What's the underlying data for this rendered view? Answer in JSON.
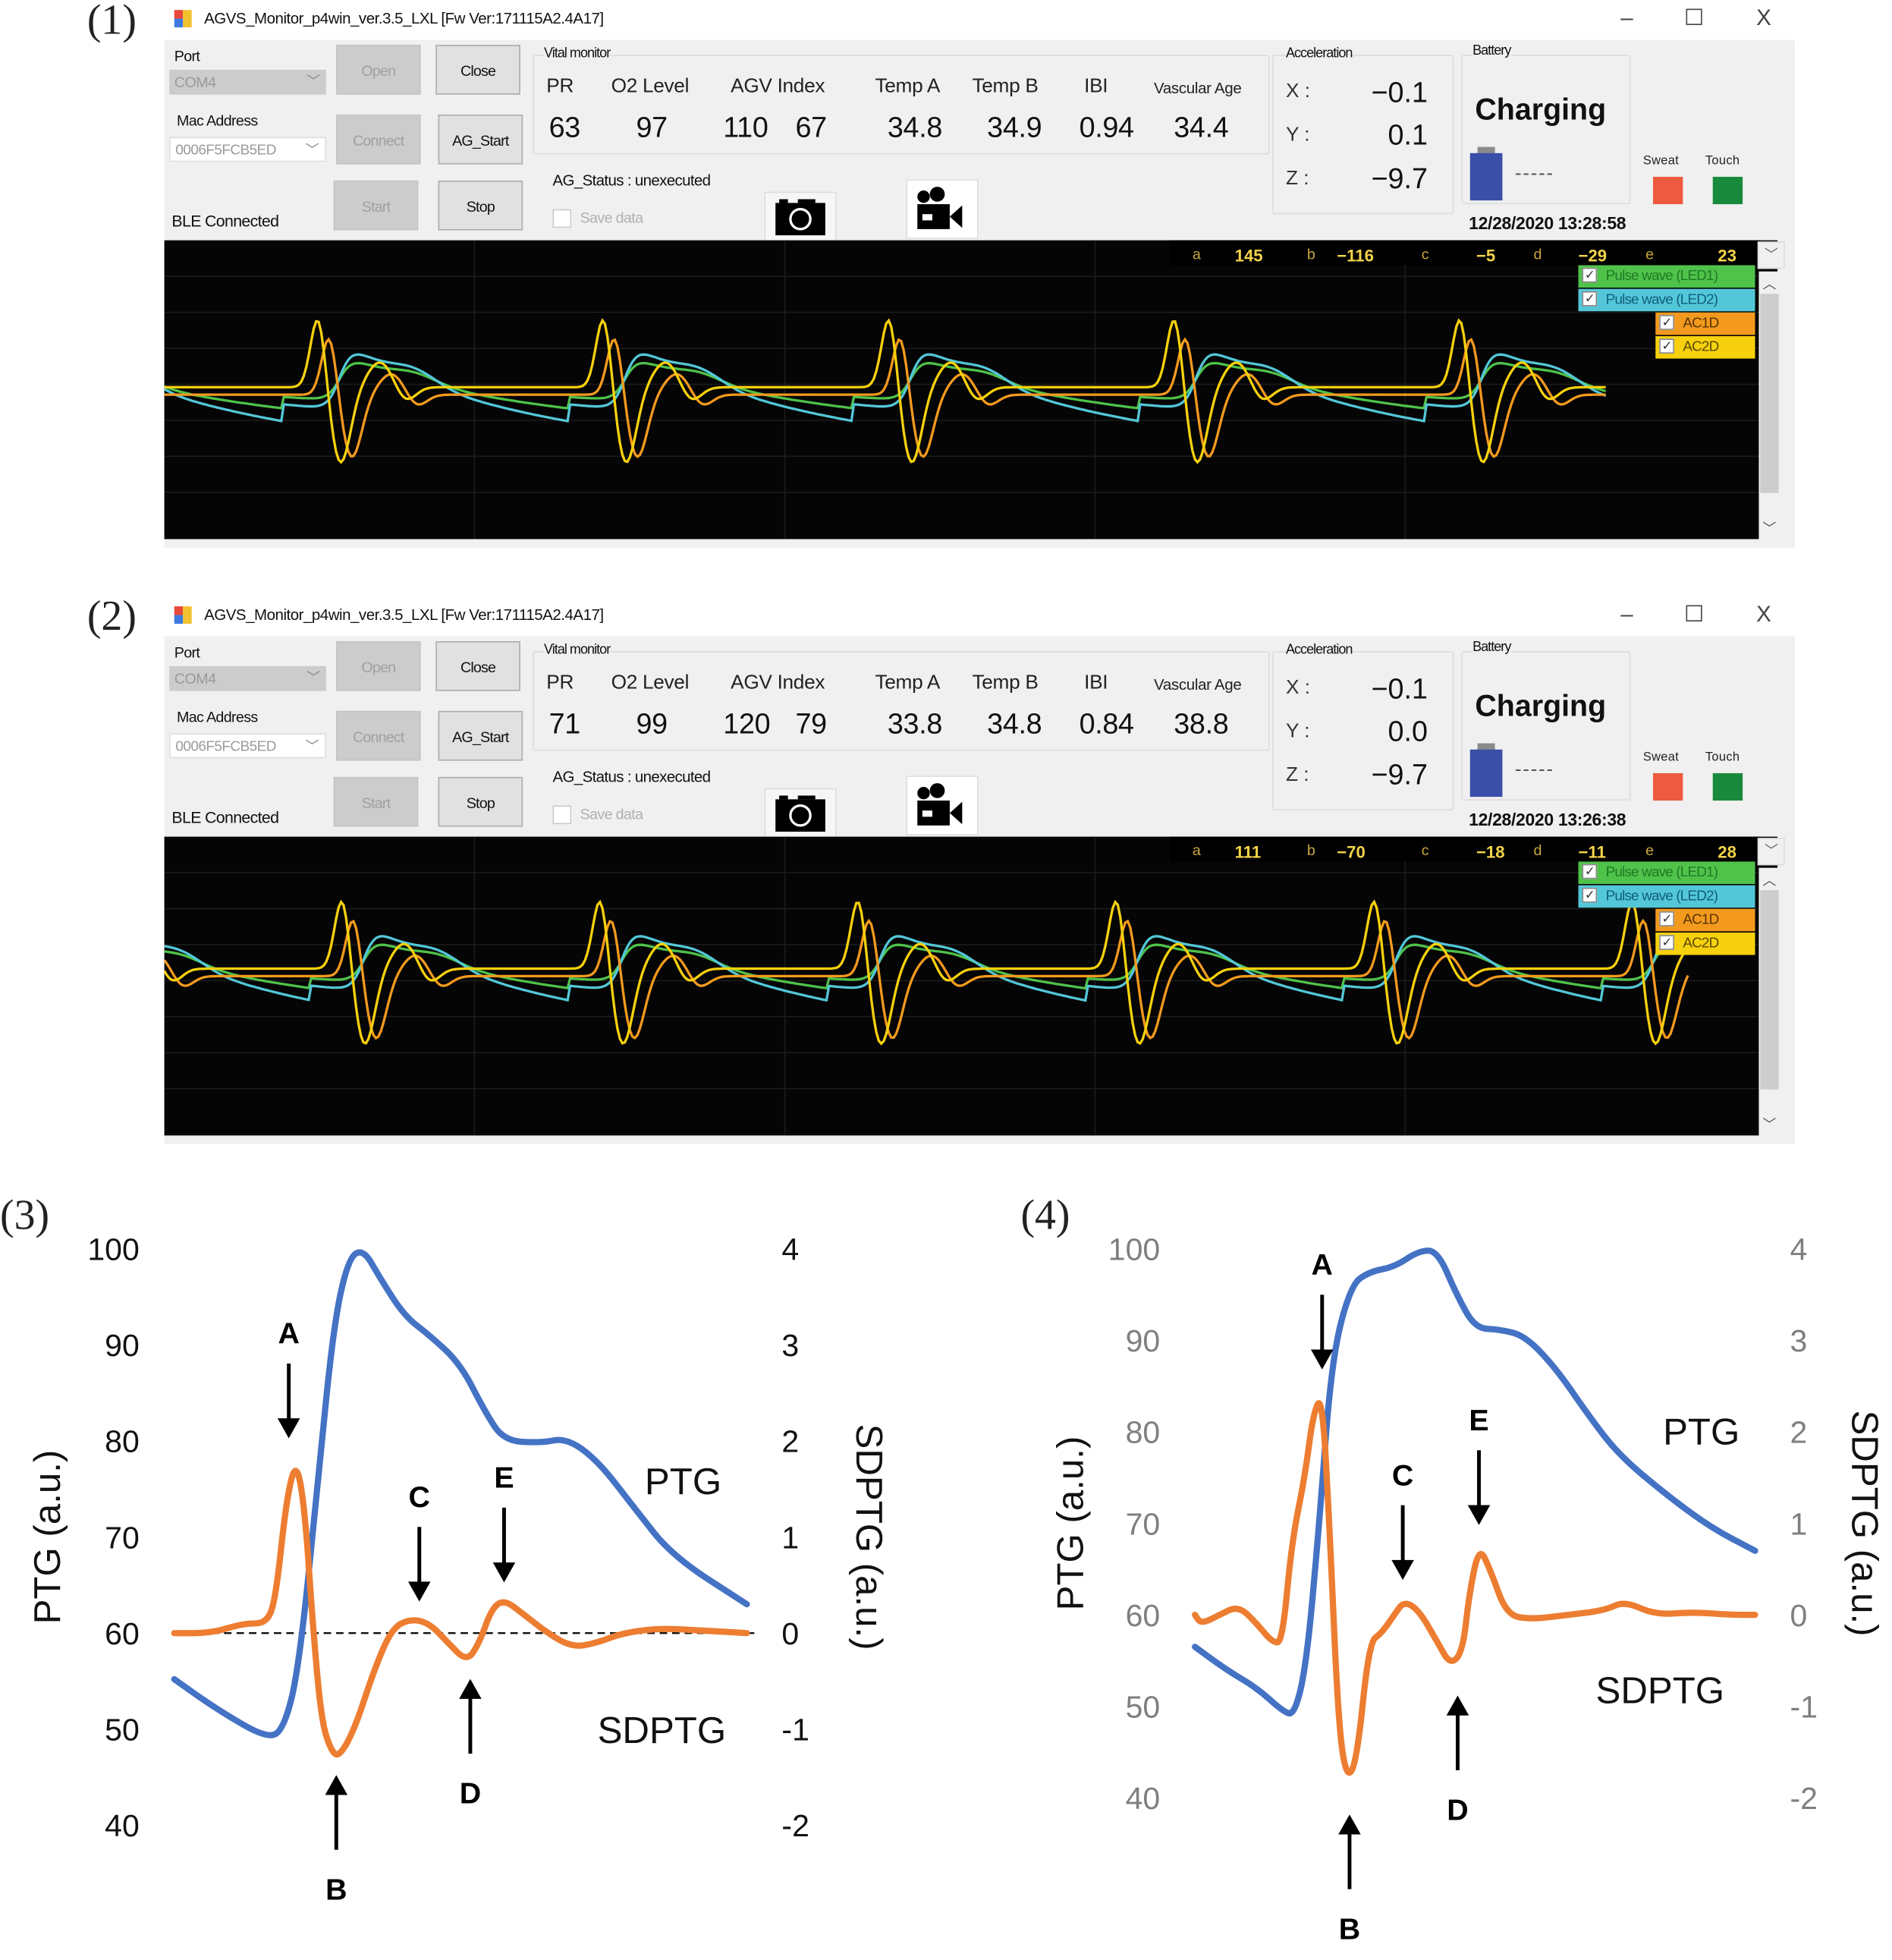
{
  "panels": [
    {
      "label": "(1)",
      "window": {
        "title": "AGVS_Monitor_p4win_ver.3.5_LXL   [Fw Ver:171115A2.4A17]",
        "controls": {
          "minimize": "–",
          "maximize": "☐",
          "close": "X"
        }
      },
      "connection": {
        "port_label": "Port",
        "port_value": "COM4",
        "mac_label": "Mac Address",
        "mac_value": "0006F5FCB5ED",
        "ble_status": "BLE Connected",
        "buttons": {
          "open": "Open",
          "close": "Close",
          "connect": "Connect",
          "ag_start": "AG_Start",
          "start": "Start",
          "stop": "Stop"
        }
      },
      "vital_monitor": {
        "title": "Vital monitor",
        "headers": [
          "PR",
          "O2 Level",
          "AGV Index",
          "Temp A",
          "Temp B",
          "IBI",
          "Vascular Age"
        ],
        "values": {
          "pr": "63",
          "o2": "97",
          "agv1": "110",
          "agv2": "67",
          "temp_a": "34.8",
          "temp_b": "34.9",
          "ibi": "0.94",
          "vascular_age": "34.4"
        }
      },
      "ag_status": "AG_Status : unexecuted",
      "save_data_label": "Save data",
      "save_data_checked": false,
      "acceleration": {
        "title": "Acceleration",
        "x_label": "X :",
        "y_label": "Y :",
        "z_label": "Z :",
        "x": "−0.1",
        "y": "0.1",
        "z": "−9.7"
      },
      "battery": {
        "title": "Battery",
        "status": "Charging",
        "level_text": "-----"
      },
      "sensors": {
        "sweat_label": "Sweat",
        "touch_label": "Touch",
        "sweat_color": "#ee5a3f",
        "touch_color": "#198a3c"
      },
      "datetime": "12/28/2020   13:28:58",
      "params": {
        "a_label": "a",
        "a": "145",
        "b_label": "b",
        "b": "−116",
        "c_label": "c",
        "c": "−5",
        "d_label": "d",
        "d": "−29",
        "e_label": "e",
        "e": "23"
      },
      "legend": [
        {
          "label": "Pulse wave (LED1)",
          "checked": true,
          "bg": "#4fc24a",
          "fg": "#1f7a25"
        },
        {
          "label": "Pulse wave (LED2)",
          "checked": true,
          "bg": "#53c7d8",
          "fg": "#0f5d7a"
        },
        {
          "label": "AC1D",
          "checked": true,
          "bg": "#f39a1e",
          "fg": "#5a3300"
        },
        {
          "label": "AC2D",
          "checked": true,
          "bg": "#f7d10d",
          "fg": "#5a4a00"
        }
      ],
      "waveform": {
        "beats": 5,
        "beat_start": 0.1,
        "beat_period": 0.177,
        "trace_end": 0.895,
        "y_offset": 0
      }
    },
    {
      "label": "(2)",
      "window": {
        "title": "AGVS_Monitor_p4win_ver.3.5_LXL   [Fw Ver:171115A2.4A17]",
        "controls": {
          "minimize": "–",
          "maximize": "☐",
          "close": "X"
        }
      },
      "connection": {
        "port_label": "Port",
        "port_value": "COM4",
        "mac_label": "Mac Address",
        "mac_value": "0006F5FCB5ED",
        "ble_status": "BLE Connected",
        "buttons": {
          "open": "Open",
          "close": "Close",
          "connect": "Connect",
          "ag_start": "AG_Start",
          "start": "Start",
          "stop": "Stop"
        }
      },
      "vital_monitor": {
        "title": "Vital monitor",
        "headers": [
          "PR",
          "O2 Level",
          "AGV Index",
          "Temp A",
          "Temp B",
          "IBI",
          "Vascular Age"
        ],
        "values": {
          "pr": "71",
          "o2": "99",
          "agv1": "120",
          "agv2": "79",
          "temp_a": "33.8",
          "temp_b": "34.8",
          "ibi": "0.84",
          "vascular_age": "38.8"
        }
      },
      "ag_status": "AG_Status : unexecuted",
      "save_data_label": "Save data",
      "save_data_checked": false,
      "acceleration": {
        "title": "Acceleration",
        "x_label": "X :",
        "y_label": "Y :",
        "z_label": "Z :",
        "x": "−0.1",
        "y": "0.0",
        "z": "−9.7"
      },
      "battery": {
        "title": "Battery",
        "status": "Charging",
        "level_text": "-----"
      },
      "sensors": {
        "sweat_label": "Sweat",
        "touch_label": "Touch",
        "sweat_color": "#ee5a3f",
        "touch_color": "#198a3c"
      },
      "datetime": "12/28/2020   13:26:38",
      "params": {
        "a_label": "a",
        "a": "111",
        "b_label": "b",
        "b": "−70",
        "c_label": "c",
        "c": "−18",
        "d_label": "d",
        "d": "−11",
        "e_label": "e",
        "e": "28"
      },
      "legend": [
        {
          "label": "Pulse wave (LED1)",
          "checked": true,
          "bg": "#4fc24a",
          "fg": "#1f7a25"
        },
        {
          "label": "Pulse wave (LED2)",
          "checked": true,
          "bg": "#53c7d8",
          "fg": "#0f5d7a"
        },
        {
          "label": "AC1D",
          "checked": true,
          "bg": "#f39a1e",
          "fg": "#5a3300"
        },
        {
          "label": "AC2D",
          "checked": true,
          "bg": "#f7d10d",
          "fg": "#5a4a00"
        }
      ],
      "waveform": {
        "beats": 6,
        "beat_start": 0.115,
        "beat_period": 0.16,
        "trace_end": 0.945,
        "y_offset": -0.05
      }
    }
  ],
  "chart_data": [
    {
      "label": "(3)",
      "type": "line",
      "title": "",
      "ylabel": "PTG (a.u.)",
      "y2label": "SDPTG (a.u.)",
      "ylim": [
        40,
        100
      ],
      "y2lim": [
        -2,
        4
      ],
      "yticks": [
        "100",
        "90",
        "80",
        "70",
        "60",
        "50",
        "40"
      ],
      "y2ticks": [
        "4",
        "3",
        "2",
        "1",
        "0",
        "-1",
        "-2"
      ],
      "tick_color": "#111111",
      "zero_line": true,
      "series": [
        {
          "name": "PTG",
          "axis": "left",
          "color": "#4472c4",
          "x": [
            0,
            0.076,
            0.163,
            0.191,
            0.217,
            0.25,
            0.278,
            0.304,
            0.33,
            0.359,
            0.402,
            0.446,
            0.5,
            0.543,
            0.576,
            0.641,
            0.685,
            0.739,
            0.804,
            0.87,
            1.0
          ],
          "values": [
            55.2,
            52,
            49,
            50,
            56,
            75,
            92,
            99,
            100,
            97,
            93,
            91,
            88,
            83,
            80,
            79.8,
            80.3,
            78,
            73,
            68,
            63
          ]
        },
        {
          "name": "SDPTG",
          "axis": "right",
          "color": "#ed7d31",
          "x": [
            0,
            0.065,
            0.12,
            0.163,
            0.178,
            0.196,
            0.213,
            0.228,
            0.243,
            0.257,
            0.272,
            0.287,
            0.315,
            0.348,
            0.38,
            0.413,
            0.446,
            0.478,
            0.511,
            0.533,
            0.554,
            0.576,
            0.609,
            0.652,
            0.696,
            0.739,
            0.783,
            0.848,
            0.913,
            1.0
          ],
          "values": [
            0.0,
            0.0,
            0.1,
            0.1,
            0.4,
            1.4,
            1.8,
            1.3,
            0.0,
            -0.9,
            -1.2,
            -1.3,
            -1.0,
            -0.4,
            0.05,
            0.15,
            0.1,
            -0.1,
            -0.3,
            -0.1,
            0.25,
            0.35,
            0.2,
            0.0,
            -0.15,
            -0.1,
            0.0,
            0.05,
            0.03,
            0.0
          ]
        }
      ],
      "series_labels": [
        {
          "text": "PTG"
        },
        {
          "text": "SDPTG"
        }
      ],
      "annotations": [
        {
          "text": "A",
          "dir": "down",
          "x": 0.2,
          "y_sdptg": 1.95
        },
        {
          "text": "B",
          "dir": "up",
          "x": 0.283,
          "y_sdptg": -1.4
        },
        {
          "text": "C",
          "dir": "down",
          "x": 0.428,
          "y_sdptg": 0.25
        },
        {
          "text": "D",
          "dir": "up",
          "x": 0.517,
          "y_sdptg": -0.4
        },
        {
          "text": "E",
          "dir": "down",
          "x": 0.576,
          "y_sdptg": 0.45
        }
      ]
    },
    {
      "label": "(4)",
      "type": "line",
      "title": "",
      "ylabel": "PTG (a.u.)",
      "y2label": "SDPTG (a.u.)",
      "ylim": [
        40,
        100
      ],
      "y2lim": [
        -2,
        4
      ],
      "yticks": [
        "100",
        "90",
        "80",
        "70",
        "60",
        "50",
        "40"
      ],
      "y2ticks": [
        "4",
        "3",
        "2",
        "1",
        "0",
        "-1",
        "-2"
      ],
      "tick_color": "#7f7f7f",
      "zero_line": false,
      "series": [
        {
          "name": "PTG",
          "axis": "left",
          "color": "#4472c4",
          "x": [
            0,
            0.056,
            0.111,
            0.156,
            0.178,
            0.2,
            0.222,
            0.244,
            0.278,
            0.311,
            0.356,
            0.4,
            0.433,
            0.467,
            0.5,
            0.544,
            0.589,
            0.644,
            0.7,
            0.756,
            0.844,
            0.922,
            1.0
          ],
          "values": [
            56.5,
            54,
            52,
            49.5,
            49,
            55,
            70,
            88,
            96,
            97.5,
            98,
            99.8,
            99.8,
            95,
            91.3,
            91.2,
            90.5,
            87,
            82,
            77.5,
            73,
            69.5,
            67
          ]
        },
        {
          "name": "SDPTG",
          "axis": "right",
          "color": "#ed7d31",
          "x": [
            0,
            0.011,
            0.044,
            0.078,
            0.111,
            0.138,
            0.156,
            0.173,
            0.196,
            0.211,
            0.227,
            0.24,
            0.256,
            0.271,
            0.289,
            0.311,
            0.333,
            0.356,
            0.373,
            0.4,
            0.433,
            0.456,
            0.478,
            0.489,
            0.507,
            0.527,
            0.556,
            0.6,
            0.667,
            0.733,
            0.767,
            0.822,
            0.889,
            0.956,
            1.0
          ],
          "values": [
            0.0,
            -0.1,
            0.0,
            0.1,
            -0.1,
            -0.3,
            -0.3,
            0.8,
            1.5,
            2.2,
            2.4,
            1.0,
            -1.2,
            -1.8,
            -1.6,
            -0.3,
            -0.2,
            0.0,
            0.15,
            0.05,
            -0.3,
            -0.55,
            -0.4,
            0.2,
            0.75,
            0.5,
            0.0,
            -0.05,
            0.0,
            0.05,
            0.15,
            0.0,
            0.03,
            0.0,
            0.0
          ]
        }
      ],
      "series_labels": [
        {
          "text": "PTG"
        },
        {
          "text": "SDPTG"
        }
      ],
      "annotations": [
        {
          "text": "A",
          "dir": "down",
          "x": 0.227,
          "y_sdptg": 2.6
        },
        {
          "text": "B",
          "dir": "up",
          "x": 0.276,
          "y_sdptg": -2.1
        },
        {
          "text": "C",
          "dir": "down",
          "x": 0.371,
          "y_sdptg": 0.3
        },
        {
          "text": "D",
          "dir": "up",
          "x": 0.469,
          "y_sdptg": -0.8
        },
        {
          "text": "E",
          "dir": "down",
          "x": 0.507,
          "y_sdptg": 0.9
        }
      ]
    }
  ]
}
